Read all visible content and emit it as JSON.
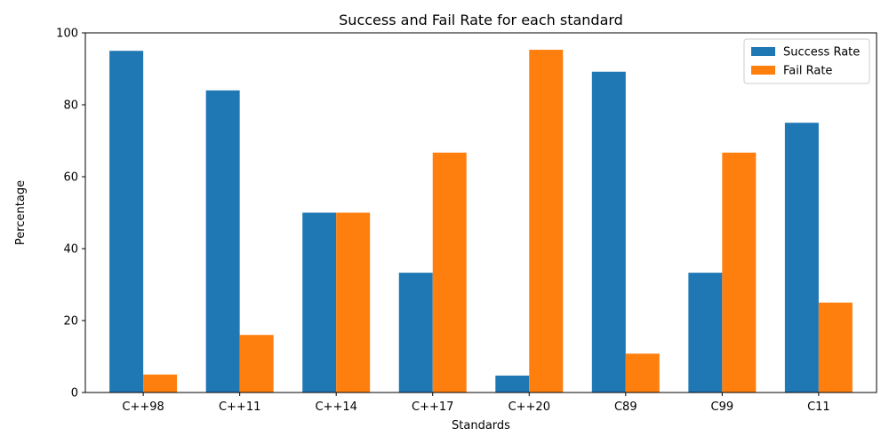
{
  "chart_data": {
    "type": "bar",
    "title": "Success and Fail Rate for each standard",
    "xlabel": "Standards",
    "ylabel": "Percentage",
    "categories": [
      "C++98",
      "C++11",
      "C++14",
      "C++17",
      "C++20",
      "C89",
      "C99",
      "C11"
    ],
    "series": [
      {
        "name": "Success Rate",
        "color": "#1f77b4",
        "values": [
          95.0,
          84.0,
          50.0,
          33.3,
          4.7,
          89.2,
          33.3,
          75.0
        ]
      },
      {
        "name": "Fail Rate",
        "color": "#ff7f0e",
        "values": [
          5.0,
          16.0,
          50.0,
          66.7,
          95.3,
          10.8,
          66.7,
          25.0
        ]
      }
    ],
    "ylim": [
      0,
      100
    ],
    "yticks": [
      0,
      20,
      40,
      60,
      80,
      100
    ],
    "legend_position": "top-right",
    "grid": false
  }
}
